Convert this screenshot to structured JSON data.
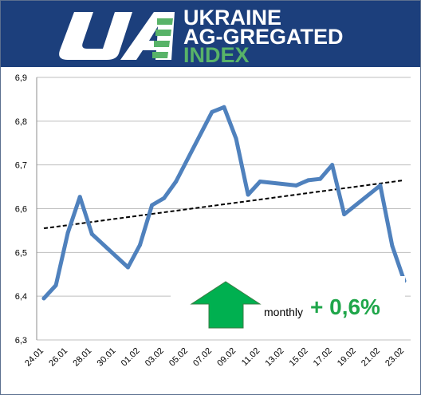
{
  "banner": {
    "logo_letters": "UA",
    "lines": [
      "UKRAINE",
      "AG-GREGATED",
      "INDEX"
    ],
    "colors": {
      "background": "#1c3f7c",
      "logo_white": "#ffffff",
      "logo_green": "#58b368",
      "text_white": "#ffffff",
      "text_green": "#58b368"
    }
  },
  "annotation": {
    "arrow_icon": "up-arrow-icon",
    "arrow_color": "#00b050",
    "label": "monthly",
    "value": "+ 0,6%",
    "value_color": "#1fa64a"
  },
  "chart_data": {
    "type": "line",
    "title": "",
    "xlabel": "",
    "ylabel": "",
    "ylim": [
      6.3,
      6.9
    ],
    "yticks": [
      "6,3",
      "6,4",
      "6,5",
      "6,6",
      "6,7",
      "6,8",
      "6,9"
    ],
    "grid": "horizontal",
    "legend": "none",
    "x_tick_labels": [
      "24.01",
      "26.01",
      "28.01",
      "30.01",
      "01.02",
      "03.02",
      "05.02",
      "07.02",
      "09.02",
      "11.02",
      "13.02",
      "15.02",
      "17.02",
      "19.02",
      "21.02",
      "23.02"
    ],
    "series": [
      {
        "color": "#4f81bd",
        "points": [
          {
            "x": "24.01",
            "y": 6.395
          },
          {
            "x": "25.01",
            "y": 6.425
          },
          {
            "x": "26.01",
            "y": 6.545
          },
          {
            "x": "27.01",
            "y": 6.627
          },
          {
            "x": "28.01",
            "y": 6.542
          },
          {
            "x": "31.01",
            "y": 6.466
          },
          {
            "x": "01.02",
            "y": 6.517
          },
          {
            "x": "02.02",
            "y": 6.608
          },
          {
            "x": "03.02",
            "y": 6.624
          },
          {
            "x": "04.02",
            "y": 6.662
          },
          {
            "x": "07.02",
            "y": 6.821
          },
          {
            "x": "08.02",
            "y": 6.832
          },
          {
            "x": "09.02",
            "y": 6.76
          },
          {
            "x": "10.02",
            "y": 6.632
          },
          {
            "x": "11.02",
            "y": 6.662
          },
          {
            "x": "14.02",
            "y": 6.653
          },
          {
            "x": "15.02",
            "y": 6.665
          },
          {
            "x": "16.02",
            "y": 6.668
          },
          {
            "x": "17.02",
            "y": 6.7
          },
          {
            "x": "18.02",
            "y": 6.587
          },
          {
            "x": "21.02",
            "y": 6.653
          },
          {
            "x": "22.02",
            "y": 6.515
          },
          {
            "x": "23.02",
            "y": 6.435
          }
        ]
      }
    ],
    "trendline": {
      "style": "dashed",
      "color": "#000000",
      "start": {
        "x": "24.01",
        "y": 6.555
      },
      "end": {
        "x": "23.02",
        "y": 6.665
      }
    }
  }
}
